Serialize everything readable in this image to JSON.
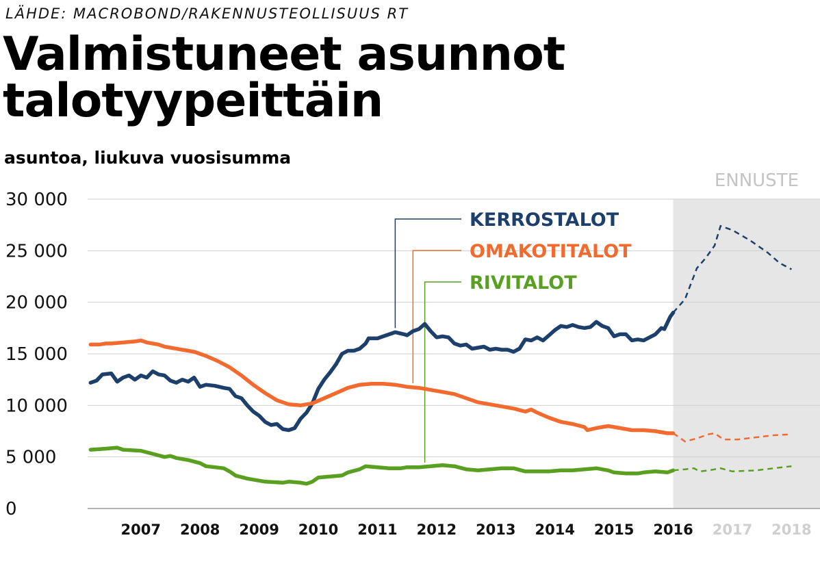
{
  "source": "LÄHDE: MACROBOND/RAKENNUSTEOLLISUUS RT",
  "title": "Valmistuneet asunnot talotyypeittäin",
  "subtitle": "asuntoa, liukuva vuosisumma",
  "chart_data": {
    "type": "line",
    "title": "Valmistuneet asunnot talotyypeittäin",
    "subtitle": "asuntoa, liukuva vuosisumma",
    "xlabel": "",
    "ylabel": "",
    "ylim": [
      0,
      30000
    ],
    "xlim": [
      2006.6,
      2018.75
    ],
    "yticks": [
      0,
      5000,
      10000,
      15000,
      20000,
      25000,
      30000
    ],
    "ytick_labels": [
      "0",
      "5 000",
      "10 000",
      "15 000",
      "20 000",
      "25 000",
      "30 000"
    ],
    "xticks": [
      {
        "label": "2007",
        "value": 2007,
        "forecast": false
      },
      {
        "label": "2008",
        "value": 2008,
        "forecast": false
      },
      {
        "label": "2009",
        "value": 2009,
        "forecast": false
      },
      {
        "label": "2010",
        "value": 2010,
        "forecast": false
      },
      {
        "label": "2011",
        "value": 2011,
        "forecast": false
      },
      {
        "label": "2012",
        "value": 2012,
        "forecast": false
      },
      {
        "label": "2013",
        "value": 2013,
        "forecast": false
      },
      {
        "label": "2014",
        "value": 2014,
        "forecast": false
      },
      {
        "label": "2015",
        "value": 2015,
        "forecast": false
      },
      {
        "label": "2016",
        "value": 2016,
        "forecast": false
      },
      {
        "label": "2017",
        "value": 2017,
        "forecast": true
      },
      {
        "label": "2018",
        "value": 2018,
        "forecast": true
      }
    ],
    "grid": true,
    "forecast": {
      "label": "ENNUSTE",
      "start": 2016.5,
      "shade_color": "#e6e6e6"
    },
    "series": [
      {
        "name": "KERROSTALOT",
        "color": "#1c3f6b",
        "label_at": 2011.8,
        "actual": [
          [
            2006.65,
            12200
          ],
          [
            2006.75,
            12400
          ],
          [
            2006.85,
            13000
          ],
          [
            2007.0,
            13100
          ],
          [
            2007.1,
            12300
          ],
          [
            2007.2,
            12700
          ],
          [
            2007.3,
            12900
          ],
          [
            2007.4,
            12500
          ],
          [
            2007.5,
            12900
          ],
          [
            2007.6,
            12700
          ],
          [
            2007.7,
            13300
          ],
          [
            2007.8,
            13000
          ],
          [
            2007.9,
            12900
          ],
          [
            2008.0,
            12400
          ],
          [
            2008.1,
            12200
          ],
          [
            2008.2,
            12500
          ],
          [
            2008.3,
            12300
          ],
          [
            2008.4,
            12700
          ],
          [
            2008.5,
            11800
          ],
          [
            2008.6,
            12000
          ],
          [
            2008.75,
            11900
          ],
          [
            2008.9,
            11700
          ],
          [
            2009.0,
            11600
          ],
          [
            2009.1,
            10900
          ],
          [
            2009.2,
            10700
          ],
          [
            2009.3,
            10000
          ],
          [
            2009.4,
            9400
          ],
          [
            2009.5,
            9000
          ],
          [
            2009.6,
            8400
          ],
          [
            2009.7,
            8100
          ],
          [
            2009.8,
            8200
          ],
          [
            2009.9,
            7700
          ],
          [
            2010.0,
            7600
          ],
          [
            2010.1,
            7800
          ],
          [
            2010.2,
            8700
          ],
          [
            2010.3,
            9300
          ],
          [
            2010.4,
            10200
          ],
          [
            2010.5,
            11600
          ],
          [
            2010.6,
            12500
          ],
          [
            2010.7,
            13200
          ],
          [
            2010.8,
            14000
          ],
          [
            2010.9,
            15000
          ],
          [
            2011.0,
            15300
          ],
          [
            2011.1,
            15300
          ],
          [
            2011.2,
            15500
          ],
          [
            2011.3,
            16000
          ],
          [
            2011.35,
            16500
          ],
          [
            2011.5,
            16500
          ],
          [
            2011.6,
            16700
          ],
          [
            2011.8,
            17100
          ],
          [
            2011.95,
            16900
          ],
          [
            2012.0,
            16800
          ],
          [
            2012.1,
            17200
          ],
          [
            2012.2,
            17400
          ],
          [
            2012.3,
            17900
          ],
          [
            2012.4,
            17200
          ],
          [
            2012.5,
            16600
          ],
          [
            2012.6,
            16700
          ],
          [
            2012.7,
            16600
          ],
          [
            2012.8,
            16000
          ],
          [
            2012.9,
            15800
          ],
          [
            2013.0,
            15900
          ],
          [
            2013.1,
            15500
          ],
          [
            2013.2,
            15600
          ],
          [
            2013.3,
            15700
          ],
          [
            2013.4,
            15400
          ],
          [
            2013.5,
            15500
          ],
          [
            2013.6,
            15400
          ],
          [
            2013.7,
            15400
          ],
          [
            2013.8,
            15200
          ],
          [
            2013.9,
            15500
          ],
          [
            2014.0,
            16400
          ],
          [
            2014.1,
            16300
          ],
          [
            2014.2,
            16600
          ],
          [
            2014.3,
            16300
          ],
          [
            2014.4,
            16800
          ],
          [
            2014.5,
            17300
          ],
          [
            2014.6,
            17700
          ],
          [
            2014.7,
            17600
          ],
          [
            2014.8,
            17800
          ],
          [
            2014.9,
            17600
          ],
          [
            2015.0,
            17500
          ],
          [
            2015.1,
            17600
          ],
          [
            2015.2,
            18100
          ],
          [
            2015.3,
            17700
          ],
          [
            2015.4,
            17500
          ],
          [
            2015.5,
            16700
          ],
          [
            2015.6,
            16900
          ],
          [
            2015.7,
            16900
          ],
          [
            2015.8,
            16300
          ],
          [
            2015.9,
            16400
          ],
          [
            2016.0,
            16300
          ],
          [
            2016.1,
            16600
          ],
          [
            2016.2,
            16900
          ],
          [
            2016.3,
            17500
          ],
          [
            2016.35,
            17400
          ],
          [
            2016.45,
            18600
          ],
          [
            2016.5,
            19000
          ]
        ],
        "forecast": [
          [
            2016.5,
            19000
          ],
          [
            2016.7,
            20300
          ],
          [
            2016.9,
            23300
          ],
          [
            2017.05,
            24300
          ],
          [
            2017.2,
            25500
          ],
          [
            2017.3,
            27400
          ],
          [
            2017.5,
            27000
          ],
          [
            2017.8,
            26000
          ],
          [
            2018.1,
            24800
          ],
          [
            2018.3,
            23800
          ],
          [
            2018.5,
            23200
          ]
        ]
      },
      {
        "name": "OMAKOTITALOT",
        "color": "#f26a2e",
        "label_at": 2012.1,
        "actual": [
          [
            2006.65,
            15900
          ],
          [
            2006.8,
            15900
          ],
          [
            2006.9,
            16000
          ],
          [
            2007.0,
            16000
          ],
          [
            2007.2,
            16100
          ],
          [
            2007.4,
            16200
          ],
          [
            2007.5,
            16300
          ],
          [
            2007.6,
            16100
          ],
          [
            2007.8,
            15900
          ],
          [
            2007.9,
            15700
          ],
          [
            2008.0,
            15600
          ],
          [
            2008.2,
            15400
          ],
          [
            2008.4,
            15200
          ],
          [
            2008.6,
            14800
          ],
          [
            2008.8,
            14300
          ],
          [
            2009.0,
            13700
          ],
          [
            2009.2,
            12900
          ],
          [
            2009.4,
            12000
          ],
          [
            2009.6,
            11200
          ],
          [
            2009.8,
            10500
          ],
          [
            2010.0,
            10100
          ],
          [
            2010.2,
            10000
          ],
          [
            2010.4,
            10200
          ],
          [
            2010.6,
            10700
          ],
          [
            2010.8,
            11200
          ],
          [
            2011.0,
            11700
          ],
          [
            2011.2,
            12000
          ],
          [
            2011.4,
            12100
          ],
          [
            2011.6,
            12100
          ],
          [
            2011.8,
            12000
          ],
          [
            2012.0,
            11800
          ],
          [
            2012.2,
            11700
          ],
          [
            2012.4,
            11500
          ],
          [
            2012.6,
            11300
          ],
          [
            2012.8,
            11100
          ],
          [
            2013.0,
            10700
          ],
          [
            2013.2,
            10300
          ],
          [
            2013.4,
            10100
          ],
          [
            2013.6,
            9900
          ],
          [
            2013.8,
            9700
          ],
          [
            2014.0,
            9400
          ],
          [
            2014.1,
            9600
          ],
          [
            2014.2,
            9300
          ],
          [
            2014.4,
            8800
          ],
          [
            2014.6,
            8400
          ],
          [
            2014.8,
            8200
          ],
          [
            2015.0,
            7900
          ],
          [
            2015.05,
            7600
          ],
          [
            2015.2,
            7800
          ],
          [
            2015.4,
            8000
          ],
          [
            2015.6,
            7800
          ],
          [
            2015.8,
            7600
          ],
          [
            2016.0,
            7600
          ],
          [
            2016.2,
            7500
          ],
          [
            2016.4,
            7300
          ],
          [
            2016.5,
            7300
          ]
        ],
        "forecast": [
          [
            2016.5,
            7300
          ],
          [
            2016.7,
            6500
          ],
          [
            2016.9,
            6800
          ],
          [
            2017.1,
            7200
          ],
          [
            2017.2,
            7300
          ],
          [
            2017.35,
            6700
          ],
          [
            2017.6,
            6700
          ],
          [
            2017.9,
            6900
          ],
          [
            2018.2,
            7100
          ],
          [
            2018.5,
            7200
          ]
        ]
      },
      {
        "name": "RIVITALOT",
        "color": "#5aa020",
        "label_at": 2012.3,
        "actual": [
          [
            2006.65,
            5700
          ],
          [
            2006.9,
            5800
          ],
          [
            2007.1,
            5900
          ],
          [
            2007.2,
            5700
          ],
          [
            2007.5,
            5600
          ],
          [
            2007.7,
            5300
          ],
          [
            2007.9,
            5000
          ],
          [
            2008.0,
            5100
          ],
          [
            2008.1,
            4900
          ],
          [
            2008.3,
            4700
          ],
          [
            2008.5,
            4400
          ],
          [
            2008.6,
            4100
          ],
          [
            2008.9,
            3900
          ],
          [
            2009.0,
            3600
          ],
          [
            2009.1,
            3200
          ],
          [
            2009.3,
            2900
          ],
          [
            2009.5,
            2700
          ],
          [
            2009.6,
            2600
          ],
          [
            2009.9,
            2500
          ],
          [
            2010.0,
            2600
          ],
          [
            2010.2,
            2500
          ],
          [
            2010.3,
            2400
          ],
          [
            2010.4,
            2600
          ],
          [
            2010.5,
            3000
          ],
          [
            2010.7,
            3100
          ],
          [
            2010.9,
            3200
          ],
          [
            2011.0,
            3500
          ],
          [
            2011.2,
            3800
          ],
          [
            2011.3,
            4100
          ],
          [
            2011.5,
            4000
          ],
          [
            2011.7,
            3900
          ],
          [
            2011.9,
            3900
          ],
          [
            2012.0,
            4000
          ],
          [
            2012.2,
            4000
          ],
          [
            2012.4,
            4100
          ],
          [
            2012.6,
            4200
          ],
          [
            2012.8,
            4100
          ],
          [
            2013.0,
            3800
          ],
          [
            2013.2,
            3700
          ],
          [
            2013.4,
            3800
          ],
          [
            2013.6,
            3900
          ],
          [
            2013.8,
            3900
          ],
          [
            2014.0,
            3600
          ],
          [
            2014.2,
            3600
          ],
          [
            2014.4,
            3600
          ],
          [
            2014.6,
            3700
          ],
          [
            2014.8,
            3700
          ],
          [
            2015.0,
            3800
          ],
          [
            2015.2,
            3900
          ],
          [
            2015.4,
            3700
          ],
          [
            2015.5,
            3500
          ],
          [
            2015.7,
            3400
          ],
          [
            2015.9,
            3400
          ],
          [
            2016.0,
            3500
          ],
          [
            2016.2,
            3600
          ],
          [
            2016.4,
            3500
          ],
          [
            2016.5,
            3700
          ]
        ],
        "forecast": [
          [
            2016.5,
            3700
          ],
          [
            2016.7,
            3800
          ],
          [
            2016.85,
            3900
          ],
          [
            2016.95,
            3600
          ],
          [
            2017.1,
            3700
          ],
          [
            2017.3,
            3900
          ],
          [
            2017.5,
            3600
          ],
          [
            2017.9,
            3700
          ],
          [
            2018.2,
            3900
          ],
          [
            2018.5,
            4100
          ]
        ]
      }
    ]
  }
}
